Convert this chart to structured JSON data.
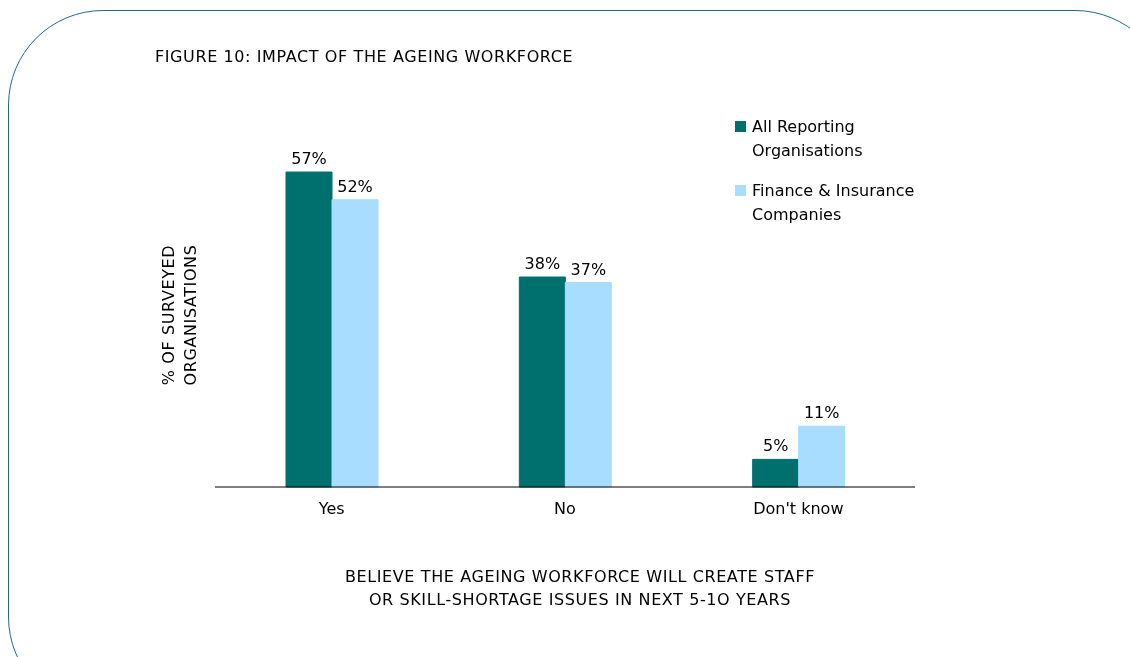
{
  "chart_data": {
    "type": "bar",
    "title": "FIGURE 10: IMPACT OF THE AGEING WORKFORCE",
    "xlabel": "BELIEVE THE AGEING WORKFORCE WILL CREATE STAFF\nOR SKILL-SHORTAGE ISSUES IN NEXT 5-1O YEARS",
    "ylabel": "% OF SURVEYED\nORGANISATIONS",
    "categories": [
      "Yes",
      "No",
      "Don't know"
    ],
    "legend": "top right",
    "series": [
      {
        "name": "All Reporting Organisations",
        "color": "#00706f",
        "values": [
          57,
          38,
          5
        ],
        "value_labels": [
          "57%",
          "38%",
          "5%"
        ]
      },
      {
        "name": "Finance & Insurance Companies",
        "color": "#a9ddff",
        "values": [
          52,
          37,
          11
        ],
        "value_labels": [
          "52%",
          "37%",
          "11%"
        ]
      }
    ]
  }
}
